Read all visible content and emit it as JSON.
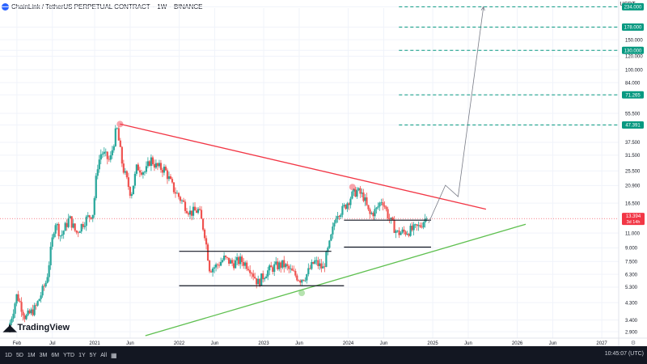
{
  "header": {
    "symbol": "ChainLink / TetherUS PERPETUAL CONTRACT",
    "interval": "1W",
    "exchange": "BINANCE",
    "currency": "USDT"
  },
  "watermark": "TradingView",
  "toolbar": {
    "timeframes": [
      "1D",
      "5D",
      "1M",
      "3M",
      "6M",
      "YTD",
      "1Y",
      "5Y",
      "All"
    ],
    "clock": "10:45:07 (UTC)"
  },
  "chart_data": {
    "type": "candlestick",
    "y_scale": "log",
    "ylim": [
      2.75,
      230
    ],
    "y_ticks": [
      {
        "v": 234.0,
        "label": "234.000",
        "target": true
      },
      {
        "v": 178.0,
        "label": "178.000",
        "target": true
      },
      {
        "v": 150.0,
        "label": "150.000"
      },
      {
        "v": 130.0,
        "label": "130.000",
        "target": true
      },
      {
        "v": 120.0,
        "label": "120.000"
      },
      {
        "v": 100.0,
        "label": "100.000"
      },
      {
        "v": 84.0,
        "label": "84.000"
      },
      {
        "v": 71.265,
        "label": "71.265",
        "target": true
      },
      {
        "v": 55.5,
        "label": "55.500"
      },
      {
        "v": 47.391,
        "label": "47.391",
        "target": true
      },
      {
        "v": 37.5,
        "label": "37.500"
      },
      {
        "v": 31.5,
        "label": "31.500"
      },
      {
        "v": 25.5,
        "label": "25.500"
      },
      {
        "v": 20.9,
        "label": "20.900"
      },
      {
        "v": 16.5,
        "label": "16.500"
      },
      {
        "v": 11.0,
        "label": "11.000"
      },
      {
        "v": 9.0,
        "label": "9.000"
      },
      {
        "v": 7.5,
        "label": "7.500"
      },
      {
        "v": 6.3,
        "label": "6.300"
      },
      {
        "v": 5.3,
        "label": "5.300"
      },
      {
        "v": 4.3,
        "label": "4.300"
      },
      {
        "v": 3.4,
        "label": "3.400"
      },
      {
        "v": 2.9,
        "label": "2.900"
      }
    ],
    "x_ticks": [
      "Feb",
      "Jul",
      "2021",
      "Jun",
      "2022",
      "Jun",
      "2023",
      "Jun",
      "2024",
      "Jun",
      "2025",
      "Jun",
      "2026",
      "Jun",
      "2027"
    ],
    "x_tick_times": [
      2020.08,
      2020.5,
      2021.0,
      2021.42,
      2022.0,
      2022.42,
      2023.0,
      2023.42,
      2024.0,
      2024.42,
      2025.0,
      2025.42,
      2026.0,
      2026.42,
      2027.0
    ],
    "xlim": [
      2019.88,
      2027.2
    ],
    "current_price": {
      "value": 13.394,
      "label": "13.394",
      "countdown": "3d 14h",
      "color": "#f23645"
    },
    "anchors": [
      [
        2020.0,
        3.0
      ],
      [
        2020.1,
        4.8
      ],
      [
        2020.2,
        3.5
      ],
      [
        2020.32,
        4.0
      ],
      [
        2020.45,
        5.8
      ],
      [
        2020.55,
        13.0
      ],
      [
        2020.62,
        10.5
      ],
      [
        2020.72,
        13.5
      ],
      [
        2020.8,
        11.0
      ],
      [
        2020.9,
        13.0
      ],
      [
        2021.0,
        14.5
      ],
      [
        2021.05,
        27.0
      ],
      [
        2021.1,
        33.0
      ],
      [
        2021.2,
        29.0
      ],
      [
        2021.28,
        46.0
      ],
      [
        2021.35,
        27.0
      ],
      [
        2021.45,
        18.5
      ],
      [
        2021.52,
        27.0
      ],
      [
        2021.62,
        25.0
      ],
      [
        2021.68,
        30.0
      ],
      [
        2021.75,
        27.0
      ],
      [
        2021.85,
        26.0
      ],
      [
        2021.95,
        20.0
      ],
      [
        2022.05,
        17.0
      ],
      [
        2022.15,
        14.5
      ],
      [
        2022.25,
        15.0
      ],
      [
        2022.32,
        11.0
      ],
      [
        2022.38,
        6.8
      ],
      [
        2022.45,
        7.0
      ],
      [
        2022.55,
        7.8
      ],
      [
        2022.65,
        7.3
      ],
      [
        2022.75,
        7.6
      ],
      [
        2022.85,
        7.0
      ],
      [
        2022.95,
        5.6
      ],
      [
        2023.05,
        6.5
      ],
      [
        2023.15,
        7.0
      ],
      [
        2023.25,
        7.2
      ],
      [
        2023.35,
        6.5
      ],
      [
        2023.45,
        5.9
      ],
      [
        2023.52,
        6.2
      ],
      [
        2023.62,
        7.5
      ],
      [
        2023.72,
        6.8
      ],
      [
        2023.8,
        9.5
      ],
      [
        2023.88,
        14.5
      ],
      [
        2023.95,
        15.0
      ],
      [
        2024.05,
        18.0
      ],
      [
        2024.12,
        19.5
      ],
      [
        2024.2,
        18.0
      ],
      [
        2024.27,
        14.0
      ],
      [
        2024.35,
        15.0
      ],
      [
        2024.42,
        17.5
      ],
      [
        2024.5,
        13.5
      ],
      [
        2024.6,
        11.0
      ],
      [
        2024.7,
        11.2
      ],
      [
        2024.78,
        11.5
      ],
      [
        2024.86,
        12.0
      ],
      [
        2024.93,
        13.394
      ]
    ],
    "drawings": {
      "resistance": {
        "color": "#f23645",
        "from": [
          2021.3,
          48.0
        ],
        "to": [
          2025.63,
          15.2
        ]
      },
      "support": {
        "color": "#5fc050",
        "from": [
          2021.6,
          2.75
        ],
        "to": [
          2026.1,
          12.4
        ]
      },
      "range_top": {
        "from": [
          2022.0,
          8.6
        ],
        "to": [
          2023.8,
          8.6
        ]
      },
      "range_bottom": {
        "from": [
          2022.0,
          5.4
        ],
        "to": [
          2023.95,
          5.4
        ]
      },
      "box_top": {
        "from": [
          2023.95,
          13.1
        ],
        "to": [
          2024.98,
          13.1
        ]
      },
      "box_bottom": {
        "from": [
          2023.95,
          9.1
        ],
        "to": [
          2024.98,
          9.1
        ]
      },
      "projection": [
        [
          2024.95,
          12.6
        ],
        [
          2025.15,
          21.0
        ],
        [
          2025.3,
          18.0
        ],
        [
          2025.6,
          234.0
        ]
      ],
      "markers": [
        {
          "x": 2021.3,
          "y": 48.0,
          "color": "#f23645"
        },
        {
          "x": 2024.05,
          "y": 20.5,
          "color": "#f23645"
        },
        {
          "x": 2023.45,
          "y": 4.9,
          "color": "#5fc050"
        }
      ]
    },
    "colors": {
      "up": "#26a69a",
      "down": "#ef5350",
      "target": "#089981",
      "grid": "#f0f3fa"
    }
  }
}
